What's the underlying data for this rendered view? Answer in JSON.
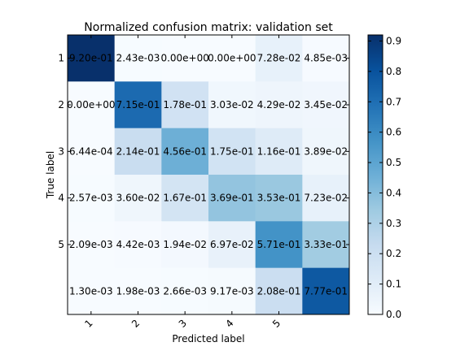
{
  "chart_data": {
    "type": "heatmap",
    "title": "Normalized confusion matrix: validation set",
    "xlabel": "Predicted label",
    "ylabel": "True label",
    "x_tick_labels": [
      "1",
      "2",
      "3",
      "4",
      "5"
    ],
    "y_tick_labels": [
      "1",
      "2",
      "3",
      "4",
      "5"
    ],
    "rows": 6,
    "cols": 6,
    "values": [
      [
        0.92,
        0.00243,
        0.0,
        0.0,
        0.0728,
        0.00485
      ],
      [
        0.0,
        0.715,
        0.178,
        0.0303,
        0.0429,
        0.0345
      ],
      [
        0.000644,
        0.214,
        0.456,
        0.175,
        0.116,
        0.0389
      ],
      [
        0.00257,
        0.036,
        0.167,
        0.369,
        0.353,
        0.0723
      ],
      [
        0.00209,
        0.00442,
        0.0194,
        0.0697,
        0.571,
        0.333
      ],
      [
        0.0013,
        0.00198,
        0.00266,
        0.00917,
        0.208,
        0.777
      ]
    ],
    "cell_labels": [
      [
        "9.20e-01",
        "2.43e-03",
        "0.00e+00",
        "0.00e+00",
        "7.28e-02",
        "4.85e-03"
      ],
      [
        "0.00e+00",
        "7.15e-01",
        "1.78e-01",
        "3.03e-02",
        "4.29e-02",
        "3.45e-02"
      ],
      [
        "6.44e-04",
        "2.14e-01",
        "4.56e-01",
        "1.75e-01",
        "1.16e-01",
        "3.89e-02"
      ],
      [
        "2.57e-03",
        "3.60e-02",
        "1.67e-01",
        "3.69e-01",
        "3.53e-01",
        "7.23e-02"
      ],
      [
        "2.09e-03",
        "4.42e-03",
        "1.94e-02",
        "6.97e-02",
        "5.71e-01",
        "3.33e-01"
      ],
      [
        "1.30e-03",
        "1.98e-03",
        "2.66e-03",
        "9.17e-03",
        "2.08e-01",
        "7.77e-01"
      ]
    ],
    "colormap": "Blues",
    "colorbar": {
      "range": [
        0.0,
        0.92
      ],
      "tick_labels": [
        "0.0",
        "0.1",
        "0.2",
        "0.3",
        "0.4",
        "0.5",
        "0.6",
        "0.7",
        "0.8",
        "0.9"
      ]
    }
  }
}
